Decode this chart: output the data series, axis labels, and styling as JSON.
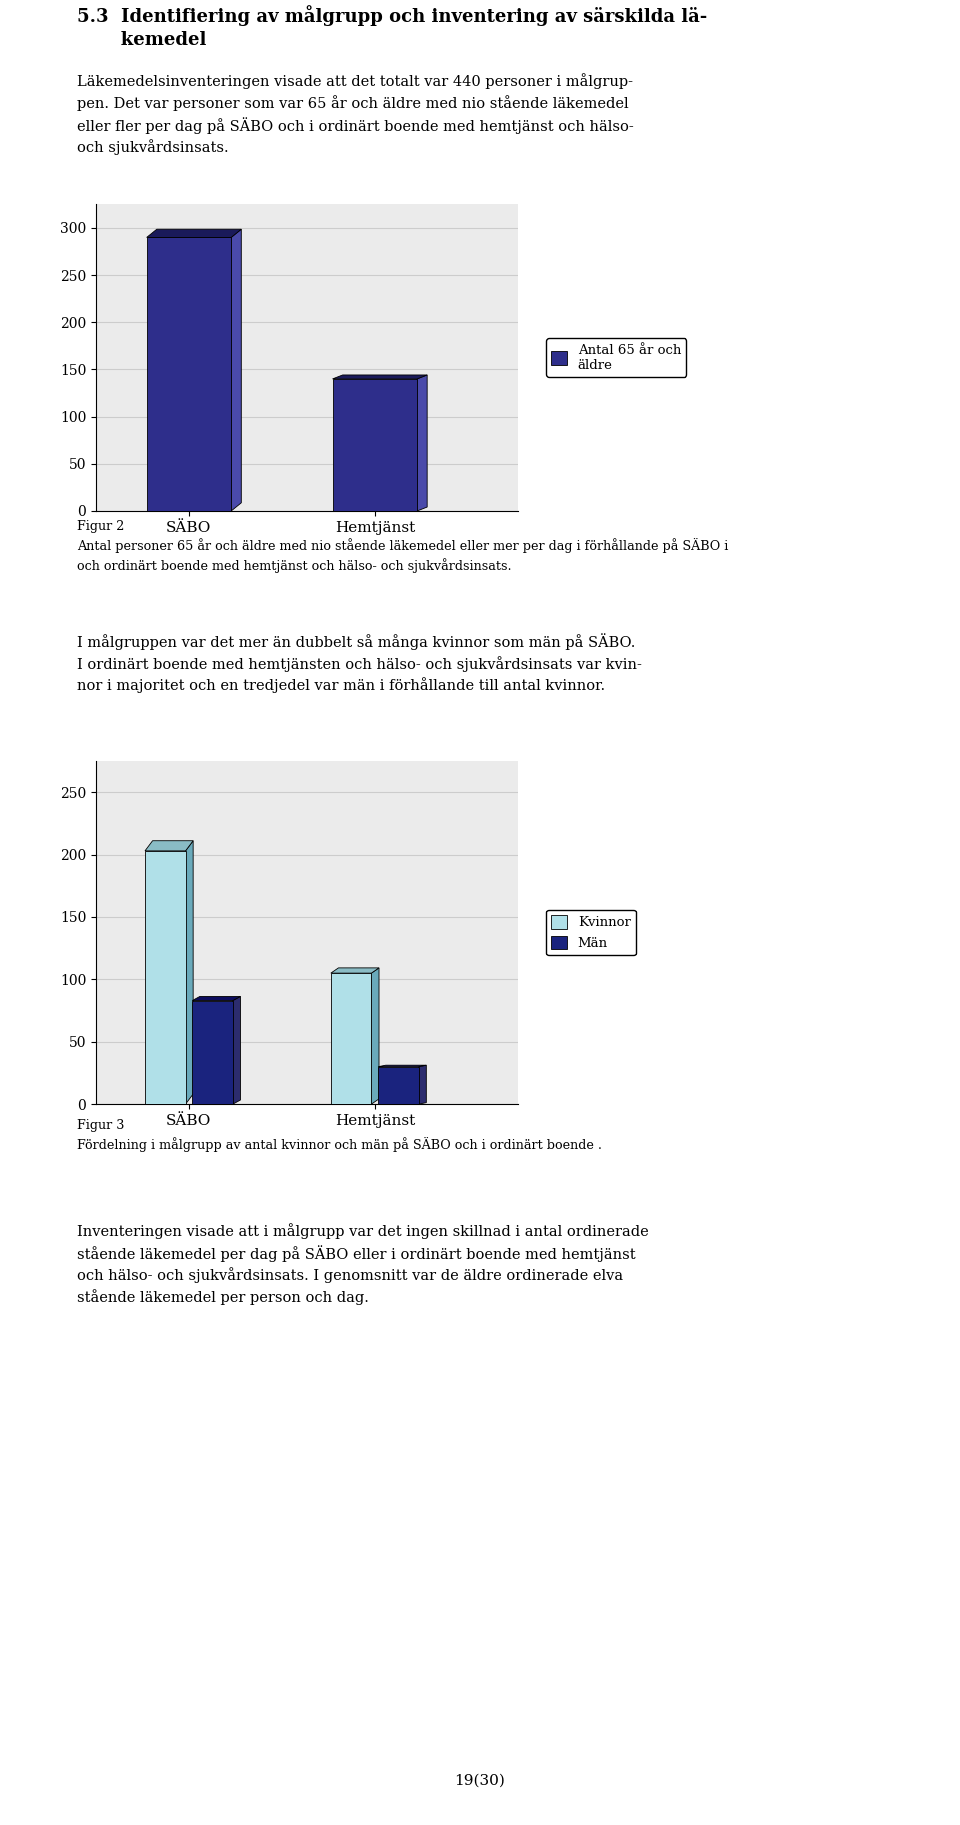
{
  "chart1": {
    "categories": [
      "SÄBO",
      "Hemtjänst"
    ],
    "values": [
      290,
      140
    ],
    "bar_color": "#2E2E8B",
    "top_color": "#1A1A5A",
    "side_color": "#4A4AAA",
    "legend_label": "Antal 65 år och\näldre",
    "ylim": [
      0,
      325
    ],
    "yticks": [
      0,
      50,
      100,
      150,
      200,
      250,
      300
    ]
  },
  "chart2": {
    "categories": [
      "SÄBO",
      "Hemtjänst"
    ],
    "kvinnor_values": [
      203,
      105
    ],
    "man_values": [
      83,
      30
    ],
    "kvinnor_color": "#B0E0E8",
    "kvinnor_top": "#8ABCC5",
    "kvinnor_side": "#6AAABB",
    "man_color": "#1A237E",
    "man_top": "#0D0D5E",
    "man_side": "#2C2C6E",
    "ylim": [
      0,
      275
    ],
    "yticks": [
      0,
      50,
      100,
      150,
      200,
      250
    ],
    "legend_kvinnor": "Kvinnor",
    "legend_man": "Män"
  },
  "background_color": "#FFFFFF",
  "grid_color": "#CCCCCC",
  "axis_bg": "#EBEBEB",
  "page_num": "19(30)"
}
